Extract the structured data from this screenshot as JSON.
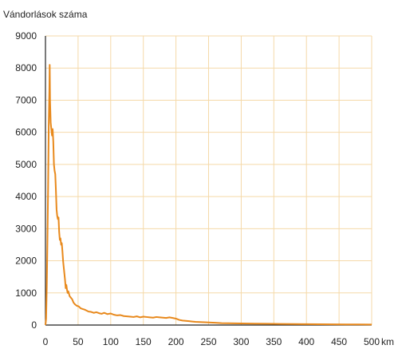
{
  "chart_data": {
    "type": "line",
    "title": "",
    "ylabel": "Vándorlások száma",
    "xlabel": "",
    "x_unit": "km",
    "xlim": [
      0,
      500
    ],
    "ylim": [
      0,
      9000
    ],
    "xticks": [
      0,
      50,
      100,
      150,
      200,
      250,
      300,
      350,
      400,
      450,
      500
    ],
    "yticks": [
      0,
      1000,
      2000,
      3000,
      4000,
      5000,
      6000,
      7000,
      8000,
      9000
    ],
    "grid": true,
    "colors": {
      "line": "#E8891C",
      "grid": "#F5D9A8",
      "axis": "#222222"
    },
    "series": [
      {
        "values": [
          [
            0,
            0
          ],
          [
            1,
            200
          ],
          [
            2,
            1200
          ],
          [
            3,
            2600
          ],
          [
            4,
            4200
          ],
          [
            5,
            6200
          ],
          [
            6,
            7300
          ],
          [
            6.5,
            8100
          ],
          [
            7,
            7000
          ],
          [
            8,
            6300
          ],
          [
            9,
            6100
          ],
          [
            10,
            5900
          ],
          [
            11,
            6100
          ],
          [
            12,
            5700
          ],
          [
            13,
            5000
          ],
          [
            14,
            4800
          ],
          [
            15,
            4700
          ],
          [
            16,
            4200
          ],
          [
            17,
            3600
          ],
          [
            18,
            3400
          ],
          [
            19,
            3300
          ],
          [
            20,
            3350
          ],
          [
            21,
            2900
          ],
          [
            22,
            2650
          ],
          [
            23,
            2700
          ],
          [
            24,
            2500
          ],
          [
            25,
            2550
          ],
          [
            26,
            2300
          ],
          [
            27,
            2000
          ],
          [
            28,
            1800
          ],
          [
            29,
            1600
          ],
          [
            30,
            1400
          ],
          [
            31,
            1150
          ],
          [
            32,
            1250
          ],
          [
            33,
            1100
          ],
          [
            34,
            1000
          ],
          [
            35,
            1050
          ],
          [
            37,
            900
          ],
          [
            39,
            850
          ],
          [
            41,
            800
          ],
          [
            43,
            700
          ],
          [
            45,
            650
          ],
          [
            48,
            600
          ],
          [
            51,
            580
          ],
          [
            54,
            520
          ],
          [
            57,
            500
          ],
          [
            60,
            480
          ],
          [
            63,
            450
          ],
          [
            66,
            420
          ],
          [
            70,
            410
          ],
          [
            74,
            380
          ],
          [
            78,
            400
          ],
          [
            82,
            370
          ],
          [
            86,
            350
          ],
          [
            90,
            380
          ],
          [
            95,
            340
          ],
          [
            100,
            360
          ],
          [
            105,
            320
          ],
          [
            110,
            300
          ],
          [
            115,
            310
          ],
          [
            120,
            280
          ],
          [
            125,
            270
          ],
          [
            130,
            260
          ],
          [
            135,
            250
          ],
          [
            140,
            270
          ],
          [
            145,
            240
          ],
          [
            150,
            260
          ],
          [
            155,
            250
          ],
          [
            160,
            240
          ],
          [
            165,
            230
          ],
          [
            170,
            250
          ],
          [
            175,
            240
          ],
          [
            180,
            230
          ],
          [
            185,
            220
          ],
          [
            190,
            240
          ],
          [
            195,
            220
          ],
          [
            200,
            200
          ],
          [
            205,
            160
          ],
          [
            210,
            140
          ],
          [
            215,
            130
          ],
          [
            220,
            120
          ],
          [
            225,
            110
          ],
          [
            230,
            100
          ],
          [
            240,
            90
          ],
          [
            250,
            80
          ],
          [
            260,
            70
          ],
          [
            270,
            60
          ],
          [
            280,
            55
          ],
          [
            300,
            50
          ],
          [
            320,
            45
          ],
          [
            340,
            40
          ],
          [
            360,
            35
          ],
          [
            380,
            30
          ],
          [
            400,
            28
          ],
          [
            420,
            25
          ],
          [
            440,
            22
          ],
          [
            460,
            20
          ],
          [
            480,
            18
          ],
          [
            500,
            15
          ]
        ]
      }
    ]
  }
}
